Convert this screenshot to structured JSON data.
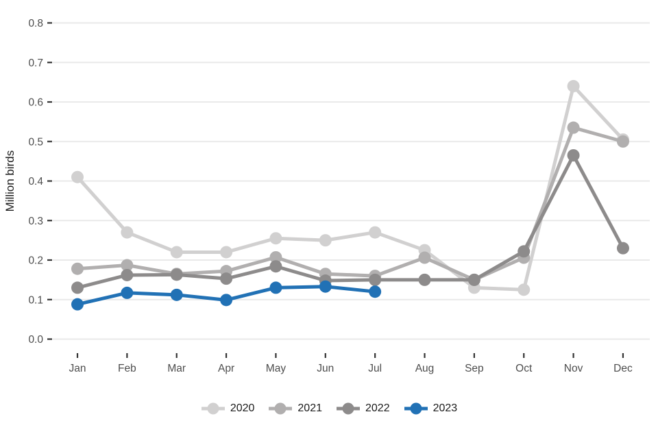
{
  "chart_data": {
    "type": "line",
    "title": "",
    "xlabel": "",
    "ylabel": "Million birds",
    "categories": [
      "Jan",
      "Feb",
      "Mar",
      "Apr",
      "May",
      "Jun",
      "Jul",
      "Aug",
      "Sep",
      "Oct",
      "Nov",
      "Dec"
    ],
    "y_tick_labels": [
      "0.0",
      "0.1",
      "0.2",
      "0.3",
      "0.4",
      "0.5",
      "0.6",
      "0.7",
      "0.8"
    ],
    "y_tick_values": [
      0.0,
      0.1,
      0.2,
      0.3,
      0.4,
      0.5,
      0.6,
      0.7,
      0.8
    ],
    "ylim": [
      0.0,
      0.8
    ],
    "grid": "horizontal-major-only",
    "legend_position": "bottom-center",
    "background_color": "#ffffff",
    "gridline_color": "#e9e9e9",
    "tick_mark_color": "#333333",
    "tick_label_color": "#4d4d4d",
    "axis_title_color": "#1a1a1a",
    "series": [
      {
        "name": "2020",
        "color": "#d1d0d0",
        "values": [
          0.41,
          0.27,
          0.22,
          0.22,
          0.255,
          0.25,
          0.27,
          0.225,
          0.13,
          0.125,
          0.64,
          0.505
        ]
      },
      {
        "name": "2021",
        "color": "#b1afaf",
        "values": [
          0.178,
          0.187,
          0.165,
          0.172,
          0.207,
          0.165,
          0.16,
          0.206,
          0.15,
          0.206,
          0.535,
          0.5
        ]
      },
      {
        "name": "2022",
        "color": "#8d8b8b",
        "values": [
          0.13,
          0.162,
          0.163,
          0.153,
          0.184,
          0.148,
          0.15,
          0.15,
          0.15,
          0.222,
          0.465,
          0.23
        ]
      },
      {
        "name": "2023",
        "color": "#2171b5",
        "values": [
          0.088,
          0.117,
          0.112,
          0.099,
          0.13,
          0.133,
          0.12,
          null,
          null,
          null,
          null,
          null
        ]
      }
    ]
  }
}
